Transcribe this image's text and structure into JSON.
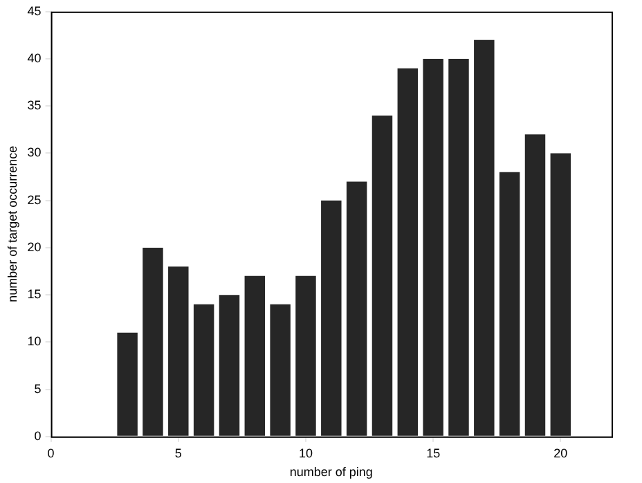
{
  "chart_data": {
    "type": "bar",
    "xlabel": "number of ping",
    "ylabel": "number of target occurrence",
    "x": [
      3,
      4,
      5,
      6,
      7,
      8,
      9,
      10,
      11,
      12,
      13,
      14,
      15,
      16,
      17,
      18,
      19,
      20
    ],
    "values": [
      11,
      20,
      18,
      14,
      15,
      17,
      14,
      17,
      25,
      27,
      34,
      39,
      40,
      40,
      42,
      28,
      32,
      30
    ],
    "color": "#262626",
    "xlim": [
      0,
      22
    ],
    "xticks": [
      0,
      5,
      10,
      15,
      20
    ],
    "ylim": [
      0,
      45
    ],
    "yticks": [
      0,
      5,
      10,
      15,
      20,
      25,
      30,
      35,
      40,
      45
    ],
    "grid": false,
    "legend": false
  }
}
